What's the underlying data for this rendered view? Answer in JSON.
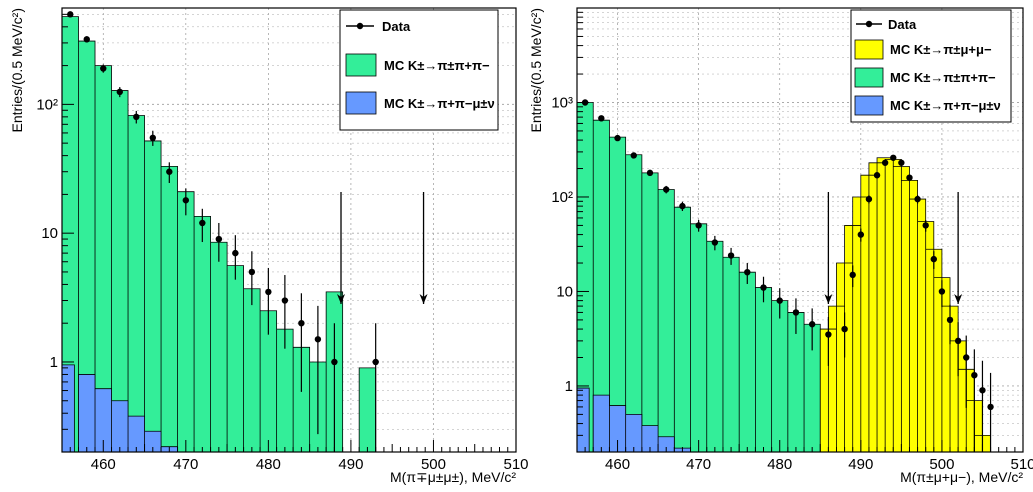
{
  "chart_data": [
    {
      "type": "histogram",
      "xlabel": "M(π∓μ±μ±), MeV/c²",
      "ylabel": "Entries/(0.5 MeV/c²)",
      "xlim": [
        455,
        510
      ],
      "ylim": [
        0.2,
        560
      ],
      "yscale": "log",
      "grid": true,
      "x_ticks": [
        "460",
        "470",
        "480",
        "490",
        "500",
        "510"
      ],
      "y_ticks": [
        "1",
        "10",
        "10²"
      ],
      "legend_position": "top-right",
      "legend": [
        "Data",
        "MC K±→π±π+π−",
        "MC K±→π+π−μ±ν"
      ],
      "series": [
        {
          "name": "MC K±→π±π+π−",
          "color": "#33ee99",
          "x": [
            456,
            458,
            460,
            462,
            464,
            466,
            468,
            470,
            472,
            474,
            476,
            478,
            480,
            482,
            484,
            486,
            488,
            490,
            492
          ],
          "y": [
            480,
            310,
            200,
            128,
            82,
            52,
            33,
            21,
            13.5,
            8.5,
            5.6,
            3.7,
            2.5,
            1.8,
            1.3,
            1.0,
            3.5,
            0,
            0.9
          ]
        },
        {
          "name": "MC K±→π+π−μ±ν",
          "color": "#6699ff",
          "x": [
            455.5,
            458,
            460,
            462,
            464,
            466,
            468,
            470
          ],
          "y": [
            0.95,
            0.8,
            0.62,
            0.5,
            0.38,
            0.29,
            0.22,
            0.2
          ]
        },
        {
          "name": "Data",
          "color": "#000000",
          "x": [
            456,
            458,
            460,
            462,
            464,
            466,
            468,
            470,
            472,
            474,
            476,
            478,
            480,
            482,
            484,
            486,
            488,
            490,
            493
          ],
          "y": [
            500,
            320,
            190,
            125,
            80,
            55,
            30,
            18,
            12,
            9,
            7,
            5,
            3.5,
            3.0,
            2.0,
            1.5,
            1.0,
            0,
            1.0
          ]
        }
      ],
      "arrows_x": [
        488.8,
        498.8
      ]
    },
    {
      "type": "histogram",
      "xlabel": "M(π±μ+μ−), MeV/c²",
      "ylabel": "Entries/(0.5 MeV/c²)",
      "xlim": [
        455,
        510
      ],
      "ylim": [
        0.2,
        10000
      ],
      "yscale": "log",
      "grid": true,
      "x_ticks": [
        "460",
        "470",
        "480",
        "490",
        "500",
        "510"
      ],
      "y_ticks": [
        "1",
        "10",
        "10²",
        "10³"
      ],
      "legend_position": "top-right",
      "legend": [
        "Data",
        "MC K±→π±μ+μ−",
        "MC K±→π±π+π−",
        "MC K±→π+π−μ±ν"
      ],
      "series": [
        {
          "name": "MC K±→π±π+π−",
          "color": "#33ee99",
          "x": [
            456,
            458,
            460,
            462,
            464,
            466,
            468,
            470,
            472,
            474,
            476,
            478,
            480,
            482,
            484,
            486
          ],
          "y": [
            1000,
            650,
            430,
            280,
            180,
            120,
            78,
            52,
            34,
            23,
            16,
            11,
            8,
            6,
            4.5,
            3.5
          ]
        },
        {
          "name": "MC K±→π±μ+μ−",
          "color": "#ffff00",
          "x": [
            486,
            487,
            488,
            489,
            490,
            491,
            492,
            493,
            494,
            495,
            496,
            497,
            498,
            499,
            500,
            501,
            502,
            503,
            504,
            505
          ],
          "y": [
            4,
            7,
            20,
            50,
            100,
            170,
            230,
            260,
            250,
            210,
            150,
            95,
            55,
            28,
            14,
            7,
            3,
            1.5,
            0.7,
            0.3
          ]
        },
        {
          "name": "MC K±→π+π−μ±ν",
          "color": "#6699ff",
          "x": [
            455.5,
            458,
            460,
            462,
            464,
            466,
            468,
            470
          ],
          "y": [
            0.95,
            0.8,
            0.62,
            0.5,
            0.38,
            0.29,
            0.22,
            0.2
          ]
        },
        {
          "name": "Data",
          "color": "#000000",
          "x": [
            456,
            458,
            460,
            462,
            464,
            466,
            468,
            470,
            472,
            474,
            476,
            478,
            480,
            482,
            484,
            486,
            488,
            489,
            490,
            491,
            492,
            493,
            494,
            495,
            496,
            497,
            498,
            499,
            500,
            501,
            502,
            503,
            504,
            505,
            506
          ],
          "y": [
            1000,
            680,
            420,
            275,
            180,
            120,
            80,
            50,
            33,
            24,
            16,
            11,
            8,
            6,
            4.5,
            3.5,
            4,
            15,
            40,
            95,
            170,
            230,
            260,
            230,
            160,
            95,
            50,
            22,
            10,
            5,
            3,
            2,
            1.3,
            0.9,
            0.6
          ]
        }
      ],
      "arrows_x": [
        486,
        502
      ]
    }
  ]
}
